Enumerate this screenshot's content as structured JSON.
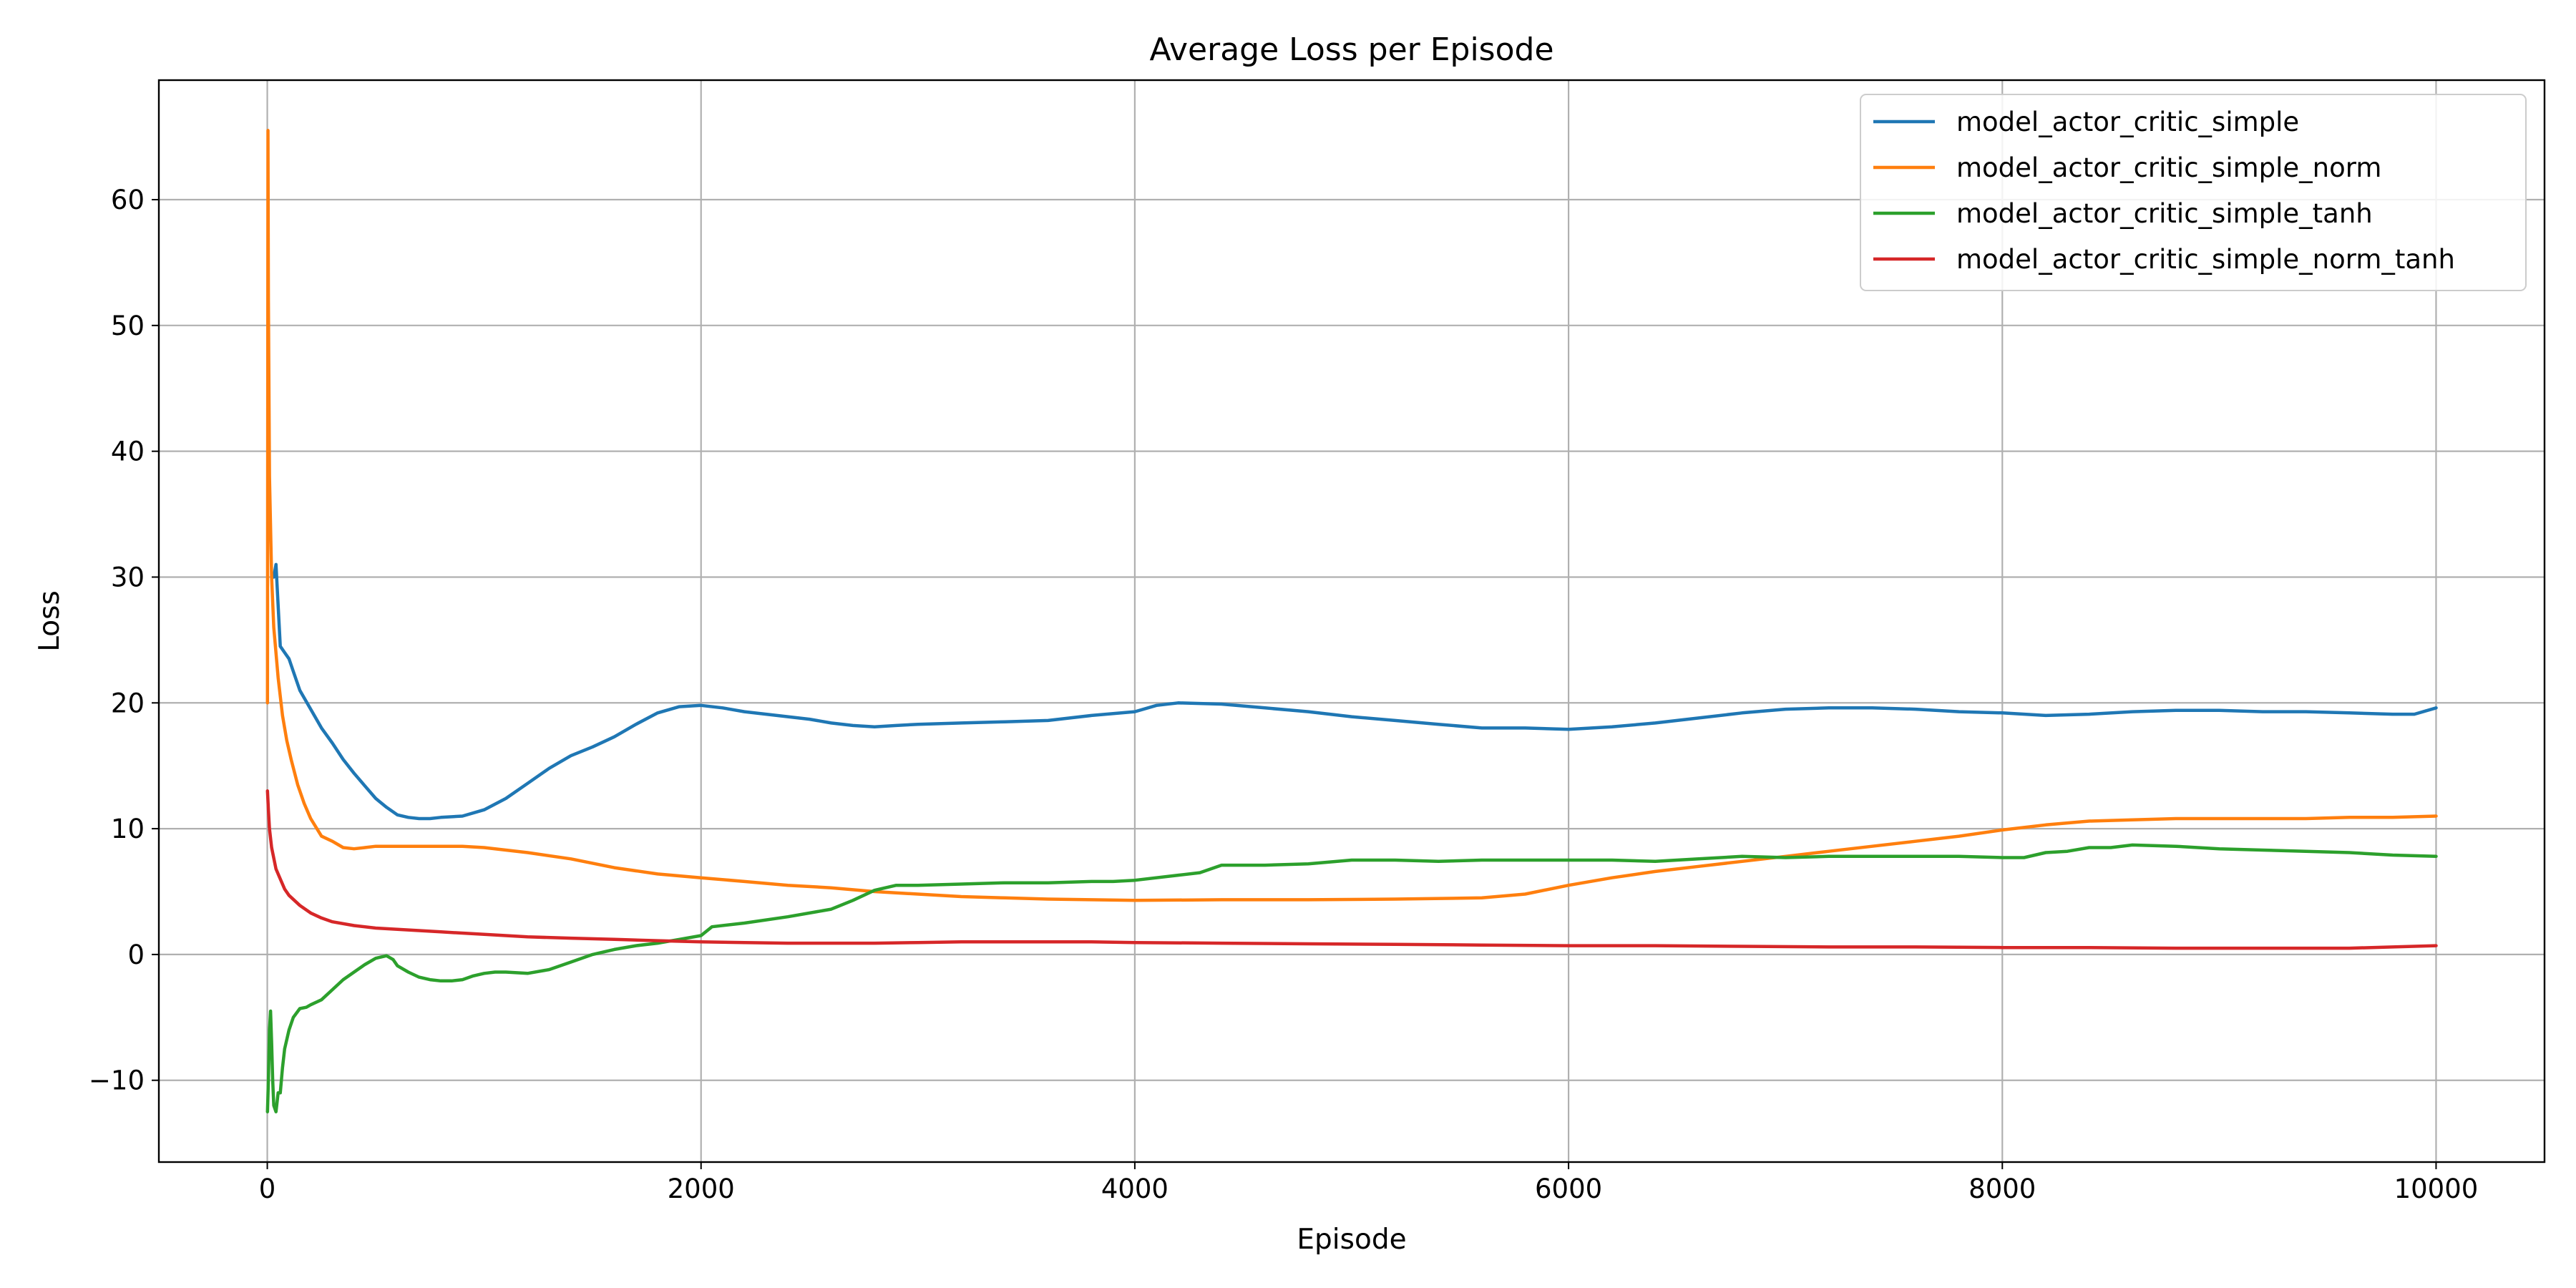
{
  "chart_data": {
    "type": "line",
    "title": "Average Loss per Episode",
    "xlabel": "Episode",
    "ylabel": "Loss",
    "xlim": [
      -500,
      10500
    ],
    "ylim": [
      -16.5,
      69.5
    ],
    "xticks": [
      0,
      2000,
      4000,
      6000,
      8000,
      10000
    ],
    "yticks": [
      -10,
      0,
      10,
      20,
      30,
      40,
      50,
      60
    ],
    "grid": true,
    "legend_position": "top-right",
    "series": [
      {
        "name": "model_actor_critic_simple",
        "color": "#1f77b4",
        "x": [
          30,
          40,
          60,
          80,
          100,
          120,
          150,
          200,
          250,
          300,
          350,
          400,
          450,
          500,
          550,
          600,
          650,
          700,
          750,
          800,
          900,
          1000,
          1100,
          1200,
          1300,
          1400,
          1500,
          1600,
          1700,
          1800,
          1900,
          2000,
          2100,
          2200,
          2300,
          2400,
          2500,
          2600,
          2700,
          2800,
          2900,
          3000,
          3200,
          3400,
          3600,
          3800,
          4000,
          4100,
          4200,
          4400,
          4600,
          4800,
          5000,
          5200,
          5400,
          5600,
          5800,
          6000,
          6200,
          6400,
          6600,
          6800,
          7000,
          7200,
          7400,
          7600,
          7800,
          8000,
          8200,
          8400,
          8600,
          8800,
          9000,
          9200,
          9400,
          9600,
          9800,
          9900,
          10000
        ],
        "y": [
          30,
          31,
          24.5,
          24,
          23.5,
          22.5,
          21,
          19.5,
          18,
          16.8,
          15.5,
          14.4,
          13.4,
          12.4,
          11.7,
          11.1,
          10.9,
          10.8,
          10.8,
          10.9,
          11.0,
          11.5,
          12.4,
          13.6,
          14.8,
          15.8,
          16.5,
          17.3,
          18.3,
          19.2,
          19.7,
          19.8,
          19.6,
          19.3,
          19.1,
          18.9,
          18.7,
          18.4,
          18.2,
          18.1,
          18.2,
          18.3,
          18.4,
          18.5,
          18.6,
          19.0,
          19.3,
          19.8,
          20.0,
          19.9,
          19.6,
          19.3,
          18.9,
          18.6,
          18.3,
          18.0,
          18.0,
          17.9,
          18.1,
          18.4,
          18.8,
          19.2,
          19.5,
          19.6,
          19.6,
          19.5,
          19.3,
          19.2,
          19.0,
          19.1,
          19.3,
          19.4,
          19.4,
          19.3,
          19.3,
          19.2,
          19.1,
          19.1,
          19.6
        ]
      },
      {
        "name": "model_actor_critic_simple_norm",
        "color": "#ff7f0e",
        "x": [
          1,
          3,
          5,
          10,
          20,
          30,
          50,
          70,
          90,
          110,
          140,
          170,
          200,
          250,
          300,
          350,
          400,
          450,
          500,
          550,
          600,
          700,
          800,
          900,
          1000,
          1200,
          1400,
          1600,
          1800,
          2000,
          2200,
          2400,
          2600,
          2800,
          3000,
          3200,
          3400,
          3600,
          3800,
          4000,
          4400,
          4800,
          5200,
          5600,
          5800,
          6000,
          6200,
          6400,
          6600,
          6800,
          7000,
          7200,
          7400,
          7600,
          7800,
          8000,
          8200,
          8400,
          8600,
          8800,
          9000,
          9200,
          9400,
          9600,
          9800,
          10000
        ],
        "y": [
          20,
          65.5,
          52,
          38,
          30,
          26,
          22,
          19,
          17,
          15.5,
          13.5,
          12,
          10.8,
          9.4,
          9.0,
          8.5,
          8.4,
          8.5,
          8.6,
          8.6,
          8.6,
          8.6,
          8.6,
          8.6,
          8.5,
          8.1,
          7.6,
          6.9,
          6.4,
          6.1,
          5.8,
          5.5,
          5.3,
          5.0,
          4.8,
          4.6,
          4.5,
          4.4,
          4.35,
          4.3,
          4.35,
          4.35,
          4.4,
          4.5,
          4.8,
          5.5,
          6.1,
          6.6,
          7.0,
          7.4,
          7.8,
          8.2,
          8.6,
          9.0,
          9.4,
          9.9,
          10.3,
          10.6,
          10.7,
          10.8,
          10.8,
          10.8,
          10.8,
          10.9,
          10.9,
          11.0
        ]
      },
      {
        "name": "model_actor_critic_simple_tanh",
        "color": "#2ca02c",
        "x": [
          1,
          5,
          10,
          15,
          20,
          25,
          30,
          40,
          50,
          60,
          70,
          80,
          100,
          120,
          150,
          180,
          200,
          250,
          300,
          350,
          400,
          450,
          500,
          550,
          580,
          600,
          650,
          700,
          750,
          800,
          850,
          900,
          950,
          1000,
          1050,
          1100,
          1200,
          1300,
          1400,
          1500,
          1600,
          1700,
          1800,
          1900,
          2000,
          2050,
          2200,
          2400,
          2600,
          2700,
          2800,
          2900,
          3000,
          3200,
          3400,
          3600,
          3800,
          3900,
          4000,
          4200,
          4300,
          4400,
          4600,
          4800,
          5000,
          5200,
          5400,
          5600,
          5800,
          6000,
          6200,
          6400,
          6600,
          6800,
          7000,
          7200,
          7400,
          7600,
          7800,
          8000,
          8100,
          8200,
          8300,
          8400,
          8500,
          8600,
          8800,
          9000,
          9200,
          9400,
          9600,
          9800,
          10000
        ],
        "y": [
          -12.5,
          -10,
          -6,
          -4.5,
          -7,
          -10,
          -12,
          -12.5,
          -11,
          -11,
          -9,
          -7.5,
          -6,
          -5,
          -4.3,
          -4.2,
          -4,
          -3.6,
          -2.8,
          -2.0,
          -1.4,
          -0.8,
          -0.3,
          -0.1,
          -0.4,
          -0.9,
          -1.4,
          -1.8,
          -2.0,
          -2.1,
          -2.1,
          -2.0,
          -1.7,
          -1.5,
          -1.4,
          -1.4,
          -1.5,
          -1.2,
          -0.6,
          0.0,
          0.4,
          0.7,
          0.9,
          1.2,
          1.5,
          2.2,
          2.5,
          3.0,
          3.6,
          4.3,
          5.1,
          5.5,
          5.5,
          5.6,
          5.7,
          5.7,
          5.8,
          5.8,
          5.9,
          6.3,
          6.5,
          7.1,
          7.1,
          7.2,
          7.5,
          7.5,
          7.4,
          7.5,
          7.5,
          7.5,
          7.5,
          7.4,
          7.6,
          7.8,
          7.7,
          7.8,
          7.8,
          7.8,
          7.8,
          7.7,
          7.7,
          8.1,
          8.2,
          8.5,
          8.5,
          8.7,
          8.6,
          8.4,
          8.3,
          8.2,
          8.1,
          7.9,
          7.8
        ]
      },
      {
        "name": "model_actor_critic_simple_norm_tanh",
        "color": "#d62728",
        "x": [
          1,
          5,
          10,
          20,
          40,
          60,
          80,
          100,
          150,
          200,
          250,
          300,
          400,
          500,
          600,
          800,
          1000,
          1200,
          1400,
          1600,
          1800,
          2000,
          2200,
          2400,
          2600,
          2800,
          3000,
          3200,
          3400,
          3600,
          3800,
          4000,
          4400,
          4800,
          5200,
          5600,
          6000,
          6400,
          6800,
          7200,
          7600,
          8000,
          8400,
          8800,
          9200,
          9600,
          9800,
          10000
        ],
        "y": [
          13,
          11.5,
          10,
          8.5,
          6.8,
          6.0,
          5.2,
          4.7,
          3.9,
          3.3,
          2.9,
          2.6,
          2.3,
          2.1,
          2.0,
          1.8,
          1.6,
          1.4,
          1.3,
          1.2,
          1.1,
          1.0,
          0.95,
          0.9,
          0.9,
          0.9,
          0.95,
          1.0,
          1.0,
          1.0,
          1.0,
          0.95,
          0.9,
          0.85,
          0.8,
          0.75,
          0.7,
          0.7,
          0.65,
          0.6,
          0.6,
          0.55,
          0.55,
          0.5,
          0.5,
          0.5,
          0.6,
          0.7
        ]
      }
    ]
  }
}
